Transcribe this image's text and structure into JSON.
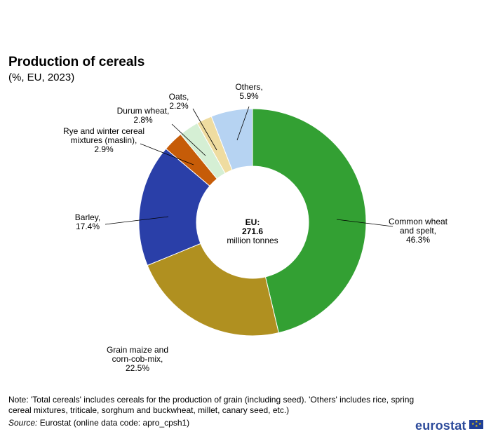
{
  "title": "Production of cereals",
  "subtitle": "(%, EU, 2023)",
  "chart_data": {
    "type": "pie",
    "donut": true,
    "center_label": {
      "line1": "EU:",
      "line2": "271.6",
      "line3": "million tonnes"
    },
    "slices": [
      {
        "label": [
          "Common wheat",
          "and spelt,"
        ],
        "value": 46.3,
        "value_text": "46.3%",
        "color": "#33a033"
      },
      {
        "label": [
          "Grain maize and",
          "corn-cob-mix,"
        ],
        "value": 22.5,
        "value_text": "22.5%",
        "color": "#b09020"
      },
      {
        "label": [
          "Barley,"
        ],
        "value": 17.4,
        "value_text": "17.4%",
        "color": "#2a3fa8"
      },
      {
        "label": [
          "Rye and winter cereal",
          "mixtures (maslin),"
        ],
        "value": 2.9,
        "value_text": "2.9%",
        "color": "#c65c08"
      },
      {
        "label": [
          "Durum wheat,"
        ],
        "value": 2.8,
        "value_text": "2.8%",
        "color": "#d5efd4"
      },
      {
        "label": [
          "Oats,"
        ],
        "value": 2.2,
        "value_text": "2.2%",
        "color": "#efdca0"
      },
      {
        "label": [
          "Others,"
        ],
        "value": 5.9,
        "value_text": "5.9%",
        "color": "#b6d3f2"
      }
    ]
  },
  "note": "Note: 'Total cereals' includes cereals for the production of grain (including seed). 'Others' includes rice, spring cereal mixtures, triticale, sorghum and buckwheat, millet, canary seed, etc.)",
  "source_prefix": "Source:",
  "source_text": " Eurostat (online data code: apro_cpsh1)",
  "logo_text": "eurostat"
}
